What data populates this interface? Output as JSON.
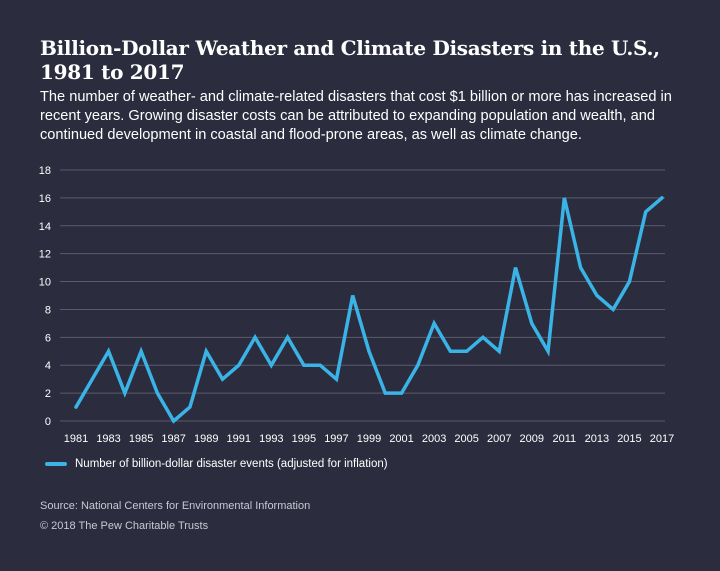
{
  "header": {
    "title_line1": "Billion-Dollar Weather and Climate Disasters in the U.S.,",
    "title_line2": "1981 to 2017",
    "subtitle": "The number of weather- and climate-related disasters that cost $1 billion or more has increased in recent years. Growing disaster costs can be attributed to expanding population and wealth, and continued development in coastal and flood-prone areas, as well as climate change."
  },
  "footer": {
    "source": "Source: National Centers for Environmental Information",
    "copyright": "© 2018 The Pew Charitable Trusts"
  },
  "colors": {
    "background": "#2b2d3e",
    "line": "#3ab3e6",
    "grid": "#5a5c6c"
  },
  "chart_data": {
    "type": "line",
    "title": "Billion-Dollar Weather and Climate Disasters in the U.S., 1981 to 2017",
    "xlabel": "",
    "ylabel": "",
    "x": [
      1981,
      1982,
      1983,
      1984,
      1985,
      1986,
      1987,
      1988,
      1989,
      1990,
      1991,
      1992,
      1993,
      1994,
      1995,
      1996,
      1997,
      1998,
      1999,
      2000,
      2001,
      2002,
      2003,
      2004,
      2005,
      2006,
      2007,
      2008,
      2009,
      2010,
      2011,
      2012,
      2013,
      2014,
      2015,
      2016,
      2017
    ],
    "series": [
      {
        "name": "Number of billion-dollar disaster events (adjusted for inflation)",
        "values": [
          1,
          3,
          5,
          2,
          5,
          2,
          0,
          1,
          5,
          3,
          4,
          6,
          4,
          6,
          4,
          4,
          3,
          9,
          5,
          2,
          2,
          4,
          7,
          5,
          5,
          6,
          5,
          11,
          7,
          5,
          16,
          11,
          9,
          8,
          10,
          15,
          16
        ]
      }
    ],
    "x_tick_labels": [
      "1981",
      "1983",
      "1985",
      "1987",
      "1989",
      "1991",
      "1993",
      "1995",
      "1997",
      "1999",
      "2001",
      "2003",
      "2005",
      "2007",
      "2009",
      "2011",
      "2013",
      "2015",
      "2017"
    ],
    "y_tick_labels": [
      "0",
      "2",
      "4",
      "6",
      "8",
      "10",
      "12",
      "14",
      "16",
      "18"
    ],
    "ylim": [
      0,
      18
    ],
    "xlim": [
      1981,
      2017
    ],
    "grid": "horizontal",
    "legend_position": "bottom-left"
  }
}
